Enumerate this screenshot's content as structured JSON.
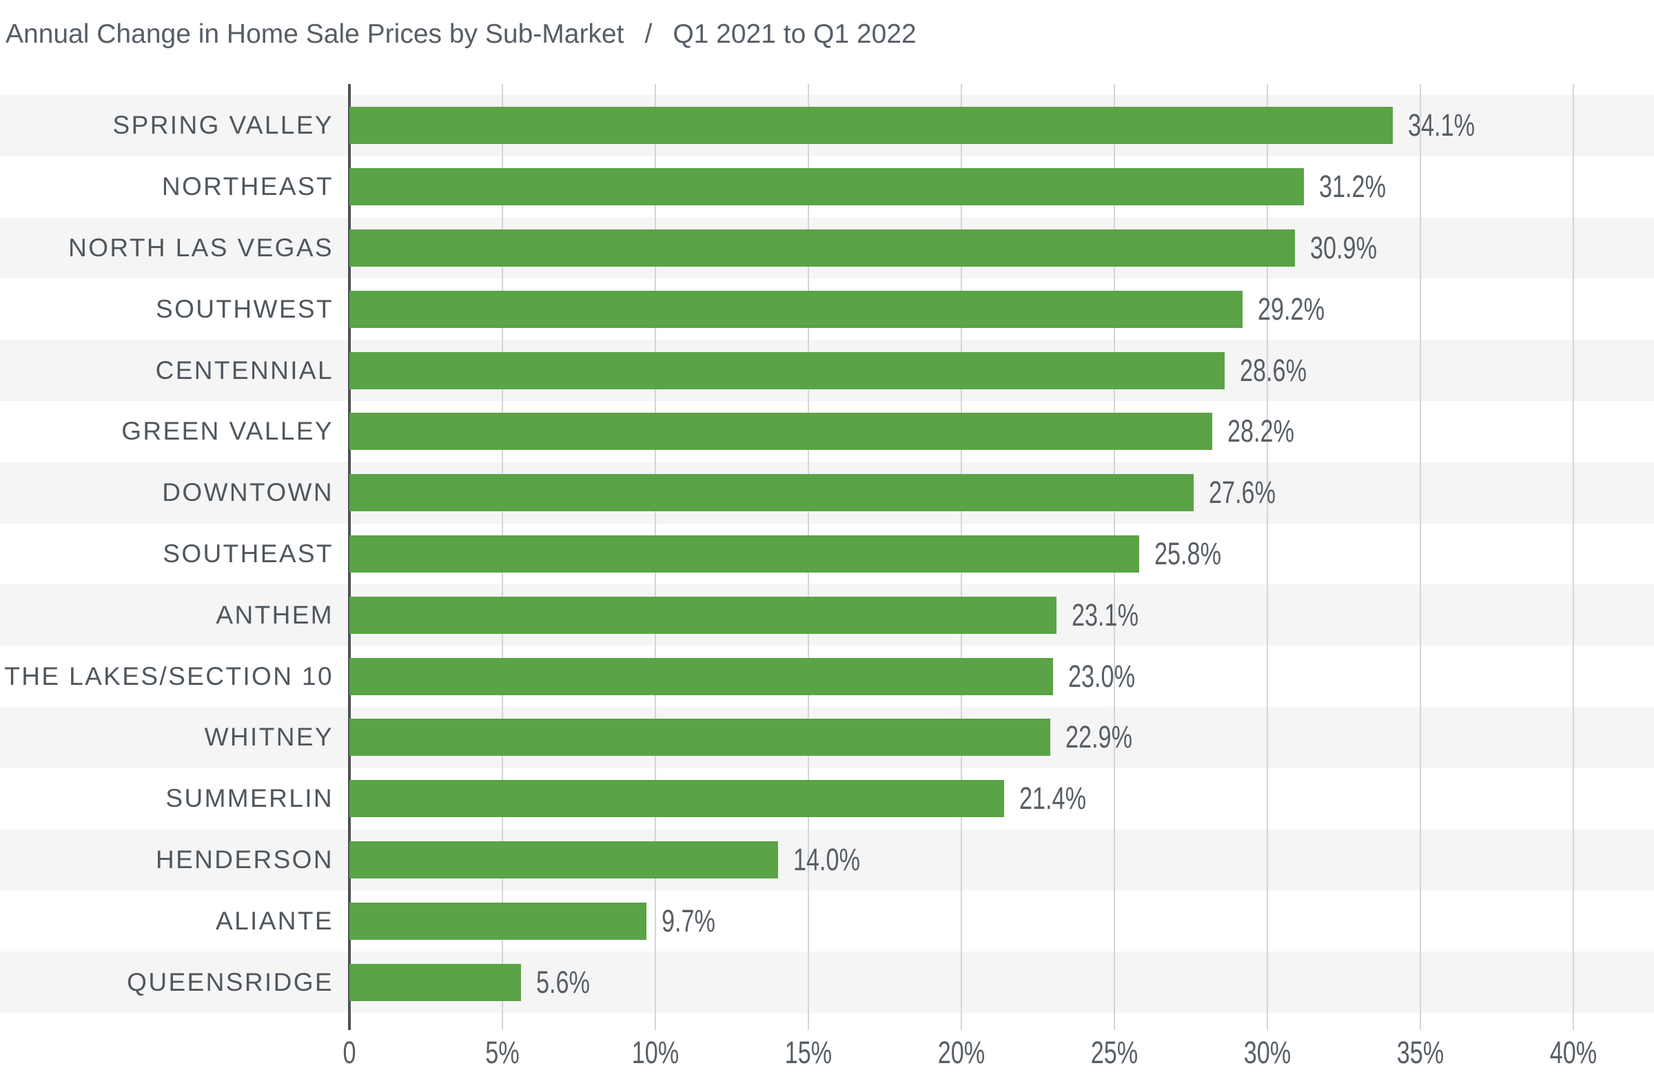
{
  "title": {
    "main": "Annual Change in Home Sale Prices by Sub-Market",
    "separator": "/",
    "period": "Q1 2021 to Q1 2022"
  },
  "chart_data": {
    "type": "bar",
    "orientation": "horizontal",
    "title": "Annual Change in Home Sale Prices by Sub-Market / Q1 2021 to Q1 2022",
    "categories": [
      "SPRING VALLEY",
      "NORTHEAST",
      "NORTH LAS VEGAS",
      "SOUTHWEST",
      "CENTENNIAL",
      "GREEN VALLEY",
      "DOWNTOWN",
      "SOUTHEAST",
      "ANTHEM",
      "THE LAKES/SECTION 10",
      "WHITNEY",
      "SUMMERLIN",
      "HENDERSON",
      "ALIANTE",
      "QUEENSRIDGE"
    ],
    "values": [
      34.1,
      31.2,
      30.9,
      29.2,
      28.6,
      28.2,
      27.6,
      25.8,
      23.1,
      23.0,
      22.9,
      21.4,
      14.0,
      9.7,
      5.6
    ],
    "value_labels": [
      "34.1%",
      "31.2%",
      "30.9%",
      "29.2%",
      "28.6%",
      "28.2%",
      "27.6%",
      "25.8%",
      "23.1%",
      "23.0%",
      "22.9%",
      "21.4%",
      "14.0%",
      "9.7%",
      "5.6%"
    ],
    "xlabel": "",
    "ylabel": "",
    "x_ticks": [
      "0",
      "5%",
      "10%",
      "15%",
      "20%",
      "25%",
      "30%",
      "35%",
      "40%"
    ],
    "x_tick_values": [
      0,
      5,
      10,
      15,
      20,
      25,
      30,
      35,
      40
    ],
    "xlim": [
      0,
      40
    ],
    "grid": "vertical",
    "legend_position": "none",
    "row_striping": "alternating, first row shaded",
    "colors": {
      "bar": "#5aa346",
      "stripe": "#f5f5f6",
      "row_alt": "#ffffff",
      "gridline": "#d3d5d6",
      "axis_line": "#4b5258",
      "category_label": "#4f575e",
      "value_label": "#575e65",
      "tick_label": "#575e65",
      "title": "#565e66"
    }
  }
}
